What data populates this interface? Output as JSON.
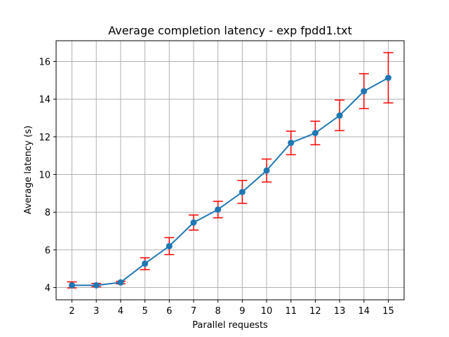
{
  "chart_data": {
    "type": "line",
    "title": "Average completion latency - exp fpdd1.txt",
    "xlabel": "Parallel requests",
    "ylabel": "Average latency (s)",
    "x": [
      2,
      3,
      4,
      5,
      6,
      7,
      8,
      9,
      10,
      11,
      12,
      13,
      14,
      15
    ],
    "xlim": [
      1.35,
      15.65
    ],
    "ylim": [
      3.35,
      17.1
    ],
    "yticks": [
      4,
      6,
      8,
      10,
      12,
      14,
      16
    ],
    "grid": true,
    "series": [
      {
        "values": [
          4.12,
          4.12,
          4.27,
          5.27,
          6.2,
          7.45,
          8.14,
          9.07,
          10.21,
          11.68,
          12.2,
          13.13,
          14.42,
          15.13
        ],
        "err_low": [
          3.98,
          4.04,
          4.2,
          4.95,
          5.75,
          7.05,
          7.7,
          8.47,
          9.6,
          11.05,
          11.58,
          12.33,
          13.5,
          13.8
        ],
        "err_high": [
          4.3,
          4.22,
          4.33,
          5.58,
          6.65,
          7.85,
          8.58,
          9.68,
          10.82,
          12.3,
          12.83,
          13.95,
          15.35,
          16.47
        ],
        "color": "#1f77b4",
        "error_color": "#ff0000"
      }
    ]
  }
}
